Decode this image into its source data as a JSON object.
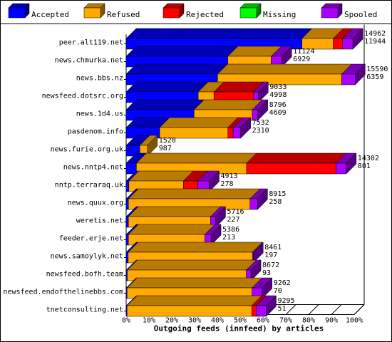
{
  "chart_data": {
    "type": "bar",
    "orientation": "horizontal",
    "stacking": "percent",
    "xlabel": "Outgoing feeds (innfeed) by articles",
    "xlim": [
      0,
      100
    ],
    "xticks": [
      "0%",
      "10%",
      "20%",
      "30%",
      "40%",
      "50%",
      "60%",
      "70%",
      "80%",
      "90%",
      "100%"
    ],
    "legend_position": "top",
    "categories": [
      "peer.alt119.net",
      "news.chmurka.net",
      "news.bbs.nz",
      "newsfeed.dotsrc.org",
      "news.1d4.us",
      "pasdenom.info",
      "news.furie.org.uk",
      "news.nntp4.net",
      "nntp.terraraq.uk",
      "news.quux.org",
      "weretis.net",
      "feeder.erje.net",
      "news.samoylyk.net",
      "newsfeed.bofh.team",
      "newsfeed.endofthelinebbs.com",
      "tnetconsulting.net"
    ],
    "top_labels": [
      "14962",
      "11124",
      "15590",
      "9033",
      "8796",
      "7532",
      "1520",
      "14302",
      "4913",
      "8915",
      "5716",
      "5386",
      "8461",
      "8672",
      "9262",
      "9295"
    ],
    "bottom_labels": [
      "11944",
      "6929",
      "6359",
      "4998",
      "4609",
      "2310",
      "987",
      "801",
      "278",
      "258",
      "227",
      "213",
      "197",
      "93",
      "70",
      "51"
    ],
    "series": [
      {
        "name": "Accepted",
        "color": "#0000ff",
        "values": [
          77.1,
          44.6,
          40.1,
          31.6,
          29.8,
          14.7,
          6.0,
          4.5,
          1.2,
          1.0,
          1.0,
          1.0,
          0.9,
          0.5,
          0.4,
          0.4
        ]
      },
      {
        "name": "Refused",
        "color": "#ffaa00",
        "values": [
          13.7,
          19.0,
          54.4,
          6.9,
          25.5,
          29.9,
          3.3,
          48.3,
          23.9,
          53.3,
          36.0,
          33.5,
          54.5,
          52.2,
          54.8,
          54.7
        ]
      },
      {
        "name": "Rejected",
        "color": "#ff0000",
        "values": [
          4.1,
          0.0,
          0.0,
          17.4,
          0.0,
          2.3,
          0.0,
          39.2,
          6.3,
          0.0,
          0.0,
          0.0,
          0.0,
          0.0,
          0.0,
          1.9
        ]
      },
      {
        "name": "Missing",
        "color": "#00ff00",
        "values": [
          0,
          0,
          0,
          0,
          0,
          0,
          0,
          0,
          0,
          0,
          0,
          0,
          0,
          0,
          0,
          0
        ]
      },
      {
        "name": "Spooled",
        "color": "#aa00ff",
        "values": [
          4.5,
          4.6,
          5.9,
          2.0,
          2.4,
          3.3,
          0.0,
          4.5,
          5.0,
          3.3,
          2.2,
          2.7,
          0.3,
          2.0,
          4.4,
          4.4
        ]
      }
    ]
  }
}
